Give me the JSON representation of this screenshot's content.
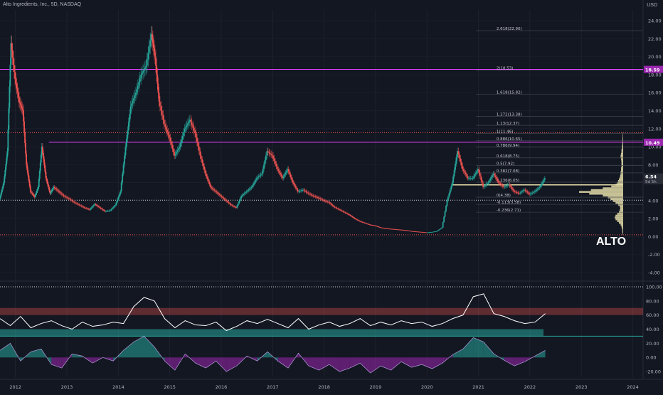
{
  "header": {
    "title": "Alto Ingredients, Inc., 5D, NASDAQ",
    "currency": "USD"
  },
  "ticker_watermark": "ALTO",
  "colors": {
    "background": "#131722",
    "up": "#26a69a",
    "down": "#ef5350",
    "resistance": "#e040fb",
    "profile": "#e8dfaa",
    "rsi": "#ffffff",
    "osc_pos": "#26a69a",
    "osc_neg": "#9c27b0"
  },
  "chart_data": [
    {
      "type": "line",
      "title": "",
      "x_ticks": [
        "2012",
        "2013",
        "2014",
        "2015",
        "2016",
        "2017",
        "2018",
        "2019",
        "2020",
        "2021",
        "2022",
        "2023",
        "2024"
      ],
      "y_ticks": [
        "24.00",
        "22.00",
        "20.00",
        "18.00",
        "16.00",
        "14.00",
        "12.00",
        "10.00",
        "8.00",
        "6.00",
        "4.00",
        "2.00",
        "0.00",
        "-2.00",
        "-4.00"
      ],
      "ylim": [
        -4.8,
        25.2
      ],
      "x_start": 2011.7,
      "x_end": 2024.2,
      "series": [
        {
          "values_x": [
            2011.7,
            2011.78,
            2011.85,
            2011.92,
            2012.0,
            2012.08,
            2012.15,
            2012.22,
            2012.3,
            2012.38,
            2012.45,
            2012.52,
            2012.6,
            2012.68,
            2012.75,
            2012.85,
            2012.95,
            2013.05,
            2013.15,
            2013.25,
            2013.35,
            2013.45,
            2013.55,
            2013.65,
            2013.75,
            2013.85,
            2013.95,
            2014.05,
            2014.15,
            2014.25,
            2014.35,
            2014.45,
            2014.55,
            2014.65,
            2014.72,
            2014.8,
            2014.9,
            2015.0,
            2015.1,
            2015.2,
            2015.3,
            2015.4,
            2015.5,
            2015.6,
            2015.7,
            2015.8,
            2015.9,
            2016.0,
            2016.1,
            2016.2,
            2016.3,
            2016.4,
            2016.5,
            2016.6,
            2016.7,
            2016.8,
            2016.9,
            2017.0,
            2017.1,
            2017.2,
            2017.3,
            2017.4,
            2017.5,
            2017.6,
            2017.7,
            2017.8,
            2017.9,
            2018.0,
            2018.1,
            2018.2,
            2018.3,
            2018.4,
            2018.5,
            2018.6,
            2018.7,
            2018.8,
            2018.9,
            2019.0,
            2019.1,
            2019.2,
            2019.3,
            2019.4,
            2019.5,
            2019.6,
            2019.7,
            2019.8,
            2019.9,
            2020.0,
            2020.1,
            2020.2,
            2020.3,
            2020.4,
            2020.5,
            2020.6,
            2020.7,
            2020.8,
            2020.9,
            2021.0,
            2021.1,
            2021.2,
            2021.3,
            2021.4,
            2021.5,
            2021.6,
            2021.7,
            2021.8,
            2021.9,
            2022.0,
            2022.1,
            2022.2,
            2022.3
          ],
          "values_y": [
            4.2,
            6.0,
            9.5,
            21.5,
            17.5,
            15.0,
            14.0,
            8.0,
            5.0,
            4.4,
            5.5,
            10.0,
            6.5,
            4.8,
            5.5,
            5.0,
            4.5,
            4.2,
            3.8,
            3.5,
            3.2,
            3.0,
            3.6,
            3.2,
            2.8,
            2.9,
            3.5,
            5.0,
            10.0,
            14.5,
            16.0,
            18.0,
            19.0,
            22.5,
            20.0,
            15.0,
            12.5,
            11.0,
            9.0,
            10.0,
            12.0,
            13.0,
            11.5,
            9.0,
            7.0,
            5.5,
            5.0,
            4.5,
            4.0,
            3.5,
            3.2,
            4.5,
            5.0,
            5.5,
            6.5,
            7.0,
            9.5,
            9.0,
            7.5,
            6.5,
            7.5,
            6.0,
            5.0,
            5.2,
            4.8,
            4.5,
            4.3,
            4.0,
            3.8,
            3.3,
            3.0,
            2.7,
            2.4,
            2.0,
            1.7,
            1.5,
            1.3,
            1.2,
            1.0,
            0.9,
            0.85,
            0.8,
            0.75,
            0.7,
            0.6,
            0.55,
            0.5,
            0.45,
            0.5,
            0.6,
            1.0,
            4.0,
            6.0,
            9.5,
            7.5,
            6.5,
            6.5,
            7.5,
            5.5,
            6.0,
            7.0,
            6.0,
            5.5,
            5.8,
            5.0,
            4.8,
            5.2,
            4.7,
            5.0,
            5.5,
            6.5
          ]
        }
      ],
      "horizontal_levels": [
        {
          "label": "18.59",
          "value": 18.59,
          "kind": "solid"
        },
        {
          "label": "10.49",
          "value": 10.49,
          "kind": "solid"
        },
        {
          "label": "",
          "value": 11.55,
          "kind": "dotted"
        },
        {
          "label": "",
          "value": 4.05,
          "kind": "dotted-white"
        },
        {
          "label": "",
          "value": 0.2,
          "kind": "dotted"
        },
        {
          "label": "",
          "value": 5.75,
          "kind": "poc"
        }
      ],
      "price_tags": [
        {
          "label": "6.54",
          "sub": "5d 5h",
          "value": 6.54
        }
      ],
      "fib_levels": [
        {
          "label": "2.618(22.90)",
          "value": 22.9
        },
        {
          "label": "2(18.53)",
          "value": 18.53
        },
        {
          "label": "1.618(15.82)",
          "value": 15.82
        },
        {
          "label": "1.272(13.38)",
          "value": 13.38
        },
        {
          "label": "1.13(12.37)",
          "value": 12.37
        },
        {
          "label": "1(11.46)",
          "value": 11.46
        },
        {
          "label": "0.886(10.65)",
          "value": 10.65
        },
        {
          "label": "0.786(9.94)",
          "value": 9.94
        },
        {
          "label": "0.618(8.75)",
          "value": 8.75
        },
        {
          "label": "0.5(7.92)",
          "value": 7.92
        },
        {
          "label": "0.382(7.08)",
          "value": 7.08
        },
        {
          "label": "0.236(6.05)",
          "value": 6.05
        },
        {
          "label": "0(4.38)",
          "value": 4.38
        },
        {
          "label": "-0.113(3.58)",
          "value": 3.58
        },
        {
          "label": "-0.236(2.71)",
          "value": 2.71
        }
      ],
      "volume_profile": [
        0.5,
        1,
        1,
        1.5,
        2,
        3,
        5,
        7,
        9,
        10,
        9,
        7,
        5,
        4,
        3.5,
        4,
        6,
        9,
        12,
        15,
        18,
        24,
        40,
        52,
        38,
        24,
        14,
        9,
        7,
        6,
        5,
        4,
        3.5,
        3,
        3,
        2.5,
        2.5,
        2,
        2,
        2,
        2.2,
        2.5,
        3,
        3,
        2.5,
        2,
        2,
        1.5,
        1.5,
        1,
        1,
        0.8,
        0.8,
        0.6,
        0.5,
        0.4
      ]
    },
    {
      "type": "line",
      "title": "",
      "y_ticks": [
        "100.00",
        "80.00",
        "60.00",
        "40.00",
        "20.00",
        "0.00",
        "-20.00"
      ],
      "ylim": [
        -28,
        106
      ],
      "series": [
        {
          "values_x": [
            2011.7,
            2011.9,
            2012.1,
            2012.3,
            2012.5,
            2012.7,
            2012.9,
            2013.1,
            2013.3,
            2013.5,
            2013.7,
            2013.9,
            2014.1,
            2014.3,
            2014.5,
            2014.7,
            2014.9,
            2015.1,
            2015.3,
            2015.5,
            2015.7,
            2015.9,
            2016.1,
            2016.3,
            2016.5,
            2016.7,
            2016.9,
            2017.1,
            2017.3,
            2017.5,
            2017.7,
            2017.9,
            2018.1,
            2018.3,
            2018.5,
            2018.7,
            2018.9,
            2019.1,
            2019.3,
            2019.5,
            2019.7,
            2019.9,
            2020.1,
            2020.3,
            2020.5,
            2020.7,
            2020.9,
            2021.1,
            2021.3,
            2021.5,
            2021.7,
            2021.9,
            2022.1,
            2022.3
          ],
          "values_y": [
            55,
            45,
            58,
            42,
            48,
            52,
            45,
            40,
            50,
            44,
            46,
            50,
            48,
            72,
            85,
            80,
            55,
            42,
            52,
            46,
            45,
            50,
            38,
            44,
            52,
            48,
            54,
            48,
            42,
            55,
            40,
            46,
            50,
            44,
            48,
            55,
            45,
            50,
            46,
            52,
            48,
            50,
            44,
            48,
            55,
            60,
            86,
            90,
            62,
            58,
            52,
            48,
            50,
            62
          ]
        },
        {
          "values_x": [
            2011.7,
            2011.9,
            2012.1,
            2012.3,
            2012.5,
            2012.7,
            2012.9,
            2013.1,
            2013.3,
            2013.5,
            2013.7,
            2013.9,
            2014.1,
            2014.3,
            2014.5,
            2014.7,
            2014.9,
            2015.1,
            2015.3,
            2015.5,
            2015.7,
            2015.9,
            2016.1,
            2016.3,
            2016.5,
            2016.7,
            2016.9,
            2017.1,
            2017.3,
            2017.5,
            2017.7,
            2017.9,
            2018.1,
            2018.3,
            2018.5,
            2018.7,
            2018.9,
            2019.1,
            2019.3,
            2019.5,
            2019.7,
            2019.9,
            2020.1,
            2020.3,
            2020.5,
            2020.7,
            2020.9,
            2021.1,
            2021.3,
            2021.5,
            2021.7,
            2021.9,
            2022.1,
            2022.3
          ],
          "values_y": [
            10,
            20,
            -5,
            8,
            12,
            -10,
            -15,
            5,
            2,
            -8,
            0,
            -5,
            10,
            22,
            30,
            15,
            -5,
            -18,
            5,
            -8,
            -15,
            -5,
            -20,
            -12,
            2,
            -5,
            8,
            -5,
            -15,
            6,
            -12,
            -18,
            -10,
            -20,
            -15,
            -8,
            -22,
            -12,
            -18,
            -6,
            -14,
            -10,
            -16,
            -8,
            4,
            12,
            28,
            22,
            5,
            -4,
            -12,
            -6,
            2,
            10
          ]
        }
      ],
      "horizontal_levels": [
        {
          "label": "",
          "value": 100,
          "kind": "dotted"
        },
        {
          "label": "",
          "value": 30,
          "kind": "teal"
        }
      ]
    }
  ]
}
